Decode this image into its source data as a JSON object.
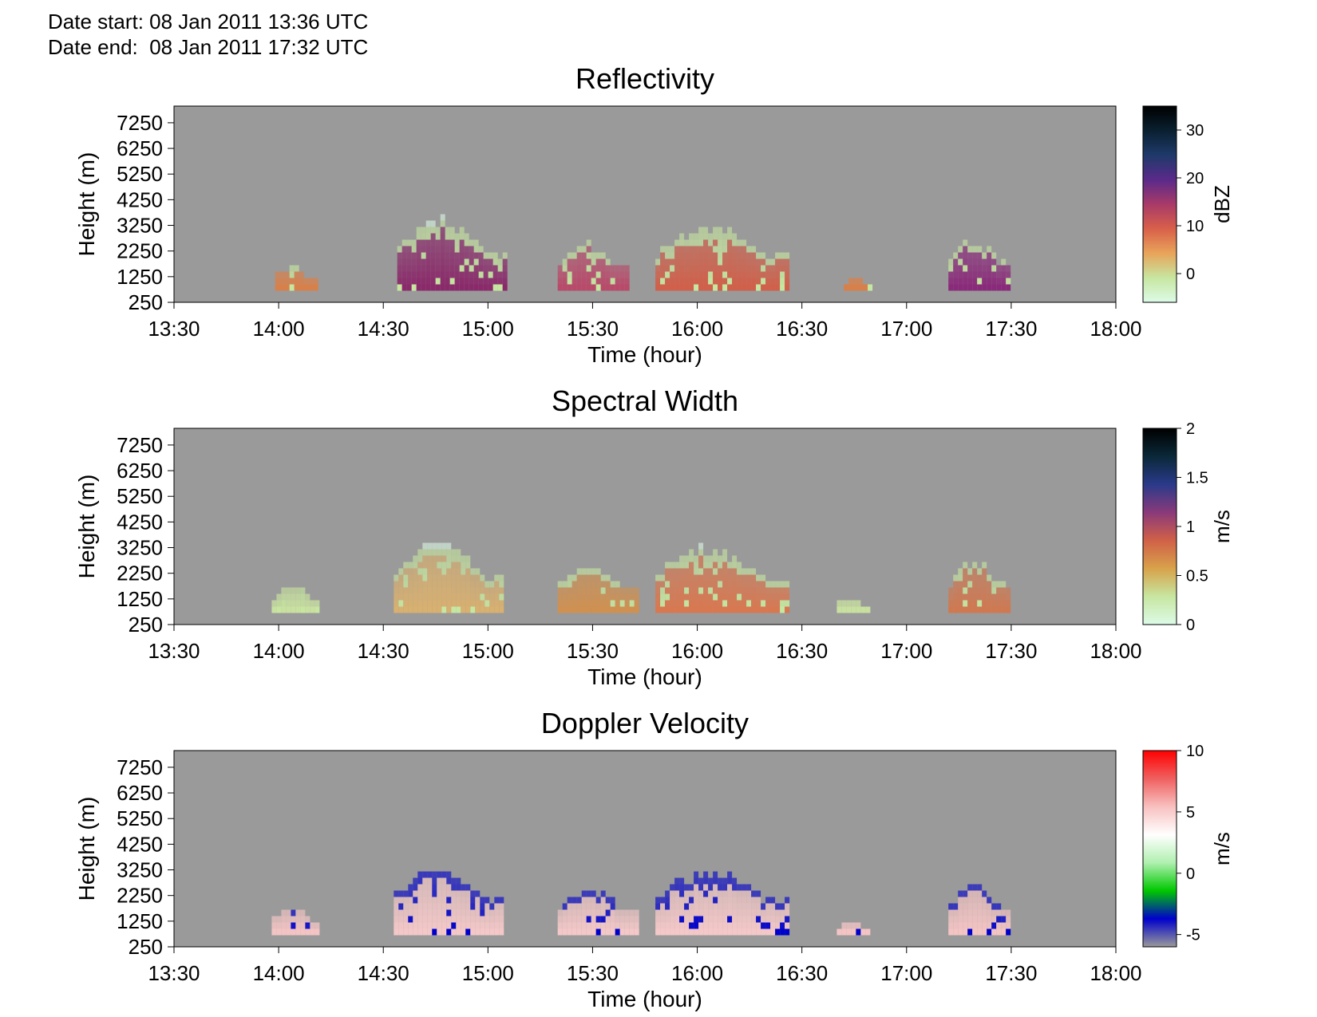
{
  "header": {
    "date_start": "Date start: 08 Jan 2011 13:36 UTC",
    "date_end": "Date end:  08 Jan 2011 17:32 UTC"
  },
  "chart_data": [
    {
      "type": "heatmap",
      "title": "Reflectivity",
      "xlabel": "Time (hour)",
      "ylabel": "Height (m)",
      "x_ticks": [
        "13:30",
        "14:00",
        "14:30",
        "15:00",
        "15:30",
        "16:00",
        "16:30",
        "17:00",
        "17:30",
        "18:00"
      ],
      "xlim": [
        "13:30",
        "18:00"
      ],
      "y_ticks": [
        250,
        1250,
        2250,
        3250,
        4250,
        5250,
        6250,
        7250
      ],
      "ylim": [
        250,
        7900
      ],
      "background_color": "#9a9a9a",
      "colorbar": {
        "label": "dBZ",
        "ticks": [
          0,
          10,
          20,
          30
        ],
        "range": [
          -6,
          35
        ],
        "colors": [
          "#ddfbe8",
          "#c7e6a0",
          "#e8a45a",
          "#d8604a",
          "#a83a68",
          "#5a2a8a",
          "#1e3a6a",
          "#0a2030",
          "#000000"
        ]
      },
      "echoes": [
        {
          "start": "13:59",
          "end": "14:12",
          "top": 1800,
          "core": "#d8804a"
        },
        {
          "start": "14:34",
          "end": "15:05",
          "top": 3600,
          "core": "#8a2a6a"
        },
        {
          "start": "15:20",
          "end": "15:40",
          "top": 2650,
          "core": "#b84a6a"
        },
        {
          "start": "15:48",
          "end": "16:26",
          "top": 3350,
          "core": "#d0604a"
        },
        {
          "start": "16:42",
          "end": "16:50",
          "top": 1350,
          "core": "#d8804a"
        },
        {
          "start": "17:12",
          "end": "17:30",
          "top": 2850,
          "core": "#8a2a7a"
        }
      ]
    },
    {
      "type": "heatmap",
      "title": "Spectral Width",
      "xlabel": "Time (hour)",
      "ylabel": "Height (m)",
      "x_ticks": [
        "13:30",
        "14:00",
        "14:30",
        "15:00",
        "15:30",
        "16:00",
        "16:30",
        "17:00",
        "17:30",
        "18:00"
      ],
      "xlim": [
        "13:30",
        "18:00"
      ],
      "y_ticks": [
        250,
        1250,
        2250,
        3250,
        4250,
        5250,
        6250,
        7250
      ],
      "ylim": [
        250,
        7900
      ],
      "background_color": "#9a9a9a",
      "colorbar": {
        "label": "m/s",
        "ticks": [
          0,
          0.5,
          1,
          1.5,
          2
        ],
        "range": [
          0,
          2
        ],
        "colors": [
          "#ddfbe8",
          "#c7e6a0",
          "#d8a24a",
          "#d06048",
          "#8a3a7a",
          "#2a3a8a",
          "#0a2838",
          "#000000"
        ]
      },
      "echoes": [
        {
          "start": "13:58",
          "end": "14:12",
          "top": 1850,
          "core": "#c8e0a0"
        },
        {
          "start": "14:33",
          "end": "15:05",
          "top": 3600,
          "core": "#d8b070"
        },
        {
          "start": "15:20",
          "end": "15:44",
          "top": 2650,
          "core": "#d09050"
        },
        {
          "start": "15:48",
          "end": "16:26",
          "top": 3350,
          "core": "#d87850"
        },
        {
          "start": "16:40",
          "end": "16:50",
          "top": 1350,
          "core": "#c8e0a0"
        },
        {
          "start": "17:12",
          "end": "17:30",
          "top": 2850,
          "core": "#d07850"
        }
      ]
    },
    {
      "type": "heatmap",
      "title": "Doppler Velocity",
      "xlabel": "Time (hour)",
      "ylabel": "Height (m)",
      "x_ticks": [
        "13:30",
        "14:00",
        "14:30",
        "15:00",
        "15:30",
        "16:00",
        "16:30",
        "17:00",
        "17:30",
        "18:00"
      ],
      "xlim": [
        "13:30",
        "18:00"
      ],
      "y_ticks": [
        250,
        1250,
        2250,
        3250,
        4250,
        5250,
        6250,
        7250
      ],
      "ylim": [
        250,
        7900
      ],
      "background_color": "#9a9a9a",
      "colorbar": {
        "label": "m/s",
        "ticks": [
          -5,
          0,
          5,
          10
        ],
        "range": [
          -6,
          10
        ],
        "colors": [
          "#9a9a9a",
          "#0000cc",
          "#00c800",
          "#b0f0b0",
          "#ffffff",
          "#f8c0c0",
          "#f06060",
          "#ff0000"
        ]
      },
      "echoes": [
        {
          "start": "13:58",
          "end": "14:12",
          "top": 1850,
          "core": "#f4c4c4"
        },
        {
          "start": "14:33",
          "end": "15:05",
          "top": 3600,
          "core": "#f4c8c8"
        },
        {
          "start": "15:20",
          "end": "15:44",
          "top": 2650,
          "core": "#f4c8c8"
        },
        {
          "start": "15:48",
          "end": "16:26",
          "top": 3350,
          "core": "#f4c8c8"
        },
        {
          "start": "16:40",
          "end": "16:50",
          "top": 1350,
          "core": "#f4c4c4"
        },
        {
          "start": "17:12",
          "end": "17:30",
          "top": 2850,
          "core": "#f4c4c4"
        }
      ]
    }
  ]
}
